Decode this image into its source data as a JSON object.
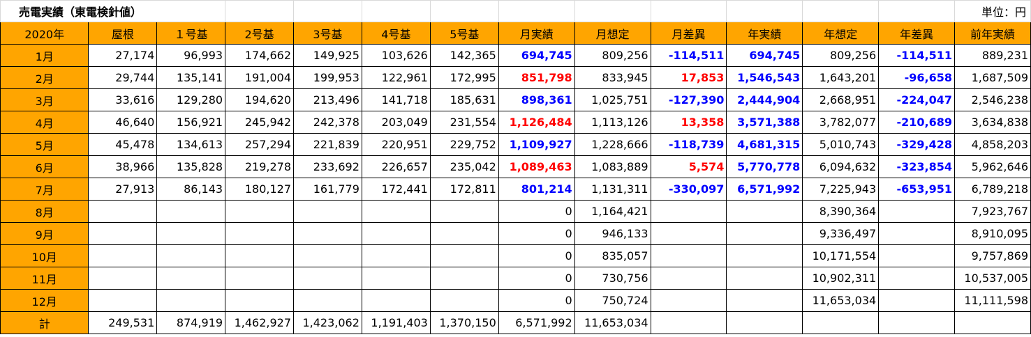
{
  "title": "売電実績（東電検針値）",
  "unit": "単位：円",
  "corner": "2020年",
  "columns": [
    "屋根",
    "１号基",
    "2号基",
    "3号基",
    "4号基",
    "5号基",
    "月実績",
    "月想定",
    "月差異",
    "年実績",
    "年想定",
    "年差異",
    "前年実績"
  ],
  "rows": [
    {
      "month": "1月",
      "cells": [
        "27,174",
        "96,993",
        "174,662",
        "149,925",
        "103,626",
        "142,365",
        "694,745",
        "809,256",
        "-114,511",
        "694,745",
        "809,256",
        "-114,511",
        "889,231"
      ]
    },
    {
      "month": "2月",
      "cells": [
        "29,744",
        "135,141",
        "191,004",
        "199,953",
        "122,961",
        "172,995",
        "851,798",
        "833,945",
        "17,853",
        "1,546,543",
        "1,643,201",
        "-96,658",
        "1,687,509"
      ]
    },
    {
      "month": "3月",
      "cells": [
        "33,616",
        "129,280",
        "194,620",
        "213,496",
        "141,718",
        "185,631",
        "898,361",
        "1,025,751",
        "-127,390",
        "2,444,904",
        "2,668,951",
        "-224,047",
        "2,546,238"
      ]
    },
    {
      "month": "4月",
      "cells": [
        "46,640",
        "156,921",
        "245,942",
        "242,378",
        "203,049",
        "231,554",
        "1,126,484",
        "1,113,126",
        "13,358",
        "3,571,388",
        "3,782,077",
        "-210,689",
        "3,634,838"
      ]
    },
    {
      "month": "5月",
      "cells": [
        "45,478",
        "134,613",
        "257,294",
        "221,839",
        "220,951",
        "229,752",
        "1,109,927",
        "1,228,666",
        "-118,739",
        "4,681,315",
        "5,010,743",
        "-329,428",
        "4,858,203"
      ]
    },
    {
      "month": "6月",
      "cells": [
        "38,966",
        "135,828",
        "219,278",
        "233,692",
        "226,657",
        "235,042",
        "1,089,463",
        "1,083,889",
        "5,574",
        "5,770,778",
        "6,094,632",
        "-323,854",
        "5,962,646"
      ]
    },
    {
      "month": "7月",
      "cells": [
        "27,913",
        "86,143",
        "180,127",
        "161,779",
        "172,441",
        "172,811",
        "801,214",
        "1,131,311",
        "-330,097",
        "6,571,992",
        "7,225,943",
        "-653,951",
        "6,789,218"
      ]
    },
    {
      "month": "8月",
      "cells": [
        "",
        "",
        "",
        "",
        "",
        "",
        "0",
        "1,164,421",
        "",
        "",
        "8,390,364",
        "",
        "7,923,767"
      ]
    },
    {
      "month": "9月",
      "cells": [
        "",
        "",
        "",
        "",
        "",
        "",
        "0",
        "946,133",
        "",
        "",
        "9,336,497",
        "",
        "8,910,095"
      ]
    },
    {
      "month": "10月",
      "cells": [
        "",
        "",
        "",
        "",
        "",
        "",
        "0",
        "835,057",
        "",
        "",
        "10,171,554",
        "",
        "9,757,869"
      ]
    },
    {
      "month": "11月",
      "cells": [
        "",
        "",
        "",
        "",
        "",
        "",
        "0",
        "730,756",
        "",
        "",
        "10,902,311",
        "",
        "10,537,005"
      ]
    },
    {
      "month": "12月",
      "cells": [
        "",
        "",
        "",
        "",
        "",
        "",
        "0",
        "750,724",
        "",
        "",
        "11,653,034",
        "",
        "11,111,598"
      ]
    }
  ],
  "total": {
    "label": "計",
    "cells": [
      "249,531",
      "874,919",
      "1,462,927",
      "1,423,062",
      "1,191,403",
      "1,370,150",
      "6,571,992",
      "11,653,034",
      "",
      "",
      "",
      "",
      ""
    ]
  },
  "colors": {
    "header_bg": "#ffa500",
    "positive_diff": "#ff0000",
    "negative_diff": "#0000ff"
  }
}
